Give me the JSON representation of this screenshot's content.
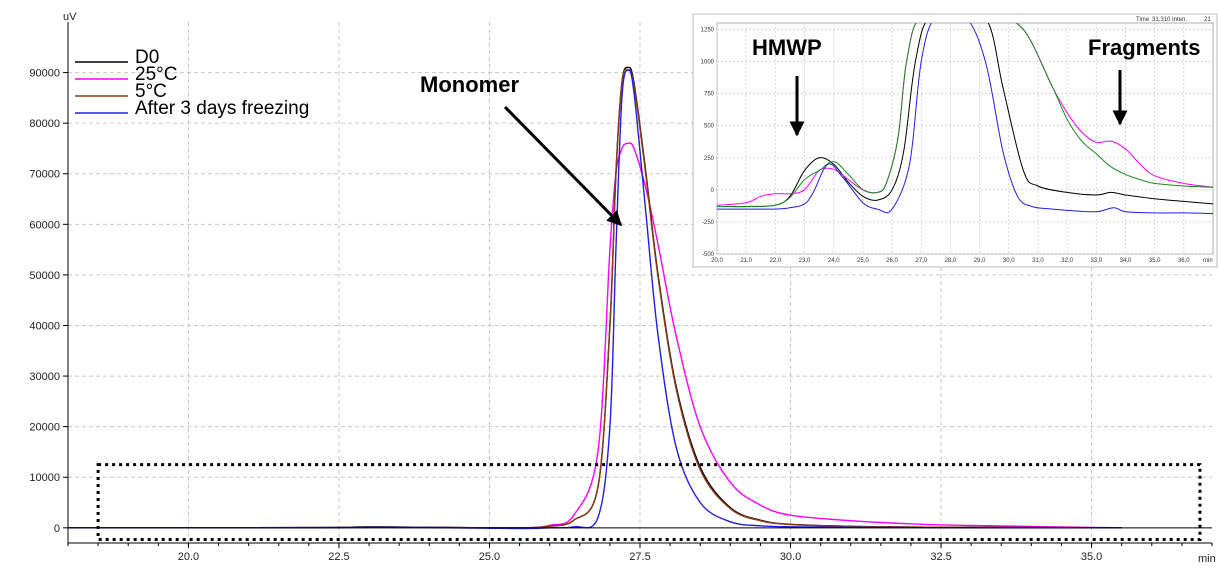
{
  "chart_data": [
    {
      "type": "line",
      "title": "",
      "xlabel": "min",
      "ylabel": "uV",
      "xlim": [
        18.0,
        37.0
      ],
      "ylim": [
        -3000,
        100000
      ],
      "x_ticks": [
        20.0,
        22.5,
        25.0,
        27.5,
        30.0,
        32.5,
        35.0
      ],
      "x_tick_labels": [
        "20.0",
        "22.5",
        "25.0",
        "27.5",
        "30.0",
        "32.5",
        "35.0"
      ],
      "y_ticks": [
        0,
        10000,
        20000,
        30000,
        40000,
        50000,
        60000,
        70000,
        80000,
        90000
      ],
      "y_tick_labels": [
        "0",
        "10000",
        "20000",
        "30000",
        "40000",
        "50000",
        "60000",
        "70000",
        "80000",
        "90000"
      ],
      "grid": true,
      "legend_position": "top-left",
      "series": [
        {
          "name": "D0",
          "color": "#000000",
          "x": [
            18.0,
            22.0,
            23.0,
            24.0,
            25.5,
            26.0,
            26.4,
            26.8,
            27.0,
            27.1,
            27.2,
            27.3,
            27.4,
            27.6,
            27.8,
            28.1,
            28.5,
            29.0,
            29.5,
            30.0,
            31.0,
            32.0,
            33.0,
            35.5
          ],
          "y": [
            0,
            50,
            200,
            100,
            0,
            300,
            1500,
            8000,
            40000,
            70000,
            88000,
            91000,
            88000,
            70000,
            50000,
            28000,
            12000,
            4000,
            1500,
            700,
            300,
            150,
            100,
            0
          ]
        },
        {
          "name": "25°C",
          "color": "#ff00ff",
          "x": [
            18.0,
            22.0,
            23.0,
            24.0,
            25.5,
            26.0,
            26.4,
            26.8,
            27.0,
            27.1,
            27.2,
            27.3,
            27.4,
            27.6,
            27.8,
            28.1,
            28.5,
            29.0,
            29.5,
            30.0,
            31.0,
            32.0,
            33.0,
            35.5
          ],
          "y": [
            0,
            50,
            150,
            100,
            0,
            500,
            2500,
            15000,
            55000,
            70000,
            75000,
            76000,
            75000,
            67000,
            56000,
            38000,
            20000,
            9000,
            4500,
            2500,
            1400,
            800,
            450,
            0
          ]
        },
        {
          "name": "5°C",
          "color": "#8b3a14",
          "x": [
            18.0,
            22.0,
            23.0,
            24.0,
            25.5,
            26.0,
            26.4,
            26.8,
            27.0,
            27.1,
            27.2,
            27.3,
            27.4,
            27.6,
            27.8,
            28.1,
            28.5,
            29.0,
            29.5,
            30.0,
            31.0,
            32.0,
            33.0,
            35.5
          ],
          "y": [
            0,
            50,
            200,
            100,
            0,
            300,
            1500,
            8000,
            40000,
            70000,
            88000,
            90500,
            87500,
            69500,
            49500,
            27500,
            11500,
            3800,
            1400,
            650,
            280,
            140,
            90,
            0
          ]
        },
        {
          "name": "After 3 days freezing",
          "color": "#1f1fe6",
          "x": [
            18.0,
            22.0,
            23.0,
            24.0,
            25.5,
            26.0,
            26.4,
            26.8,
            27.0,
            27.1,
            27.2,
            27.3,
            27.4,
            27.6,
            27.8,
            28.1,
            28.5,
            29.0,
            29.5,
            30.0,
            31.0,
            32.0,
            33.0,
            35.5
          ],
          "y": [
            0,
            0,
            100,
            50,
            -150,
            0,
            200,
            2000,
            20000,
            55000,
            85000,
            90500,
            86000,
            62000,
            38000,
            16000,
            5000,
            1200,
            400,
            200,
            100,
            50,
            0,
            0
          ]
        }
      ],
      "annotations": [
        {
          "text": "Monomer",
          "points_to": {
            "x": 27.0,
            "y": 60000
          }
        }
      ],
      "highlight_box": {
        "xlim": [
          18.5,
          36.8
        ],
        "ylim": [
          -2300,
          12500
        ],
        "style": "dotted"
      }
    },
    {
      "type": "line",
      "title": "",
      "xlabel": "min",
      "ylabel": "",
      "xlim": [
        20.0,
        37.0
      ],
      "ylim": [
        -500,
        1300
      ],
      "x_ticks": [
        20.0,
        21.0,
        22.0,
        23.0,
        24.0,
        25.0,
        26.0,
        27.0,
        28.0,
        29.0,
        30.0,
        31.0,
        32.0,
        33.0,
        34.0,
        35.0,
        36.0
      ],
      "x_tick_labels": [
        "20,0",
        "21,0",
        "22,0",
        "23,0",
        "24,0",
        "25,0",
        "26,0",
        "27,0",
        "28,0",
        "29,0",
        "30,0",
        "31,0",
        "32,0",
        "33,0",
        "34,0",
        "35,0",
        "36,0"
      ],
      "y_ticks": [
        -500,
        -250,
        0,
        250,
        500,
        750,
        1000,
        1250
      ],
      "y_tick_labels": [
        "-500",
        "-250",
        "0",
        "250",
        "500",
        "750",
        "1000",
        "1250"
      ],
      "grid": true,
      "top_text": [
        "Time",
        "31,310",
        "Inten.",
        "21"
      ],
      "series": [
        {
          "color": "#000000",
          "x": [
            20.0,
            21.0,
            22.0,
            22.5,
            23.0,
            23.5,
            24.0,
            24.5,
            25.0,
            25.5,
            26.0,
            26.4,
            26.8,
            27.3,
            28.5,
            29.3,
            29.8,
            30.5,
            31.0,
            32.0,
            33.0,
            33.5,
            34.0,
            35.0,
            36.0,
            37.0
          ],
          "y": [
            -130,
            -130,
            -120,
            -50,
            150,
            250,
            200,
            60,
            -50,
            -80,
            0,
            300,
            1000,
            1350,
            1350,
            1300,
            800,
            150,
            30,
            -20,
            -40,
            -20,
            -40,
            -70,
            -90,
            -110
          ]
        },
        {
          "color": "#ff00ff",
          "x": [
            20.0,
            21.0,
            21.5,
            22.0,
            22.5,
            23.0,
            23.5,
            24.0,
            24.5,
            25.0,
            25.5,
            25.8,
            26.2,
            26.5,
            27.0,
            28.5,
            29.5,
            30.5,
            31.5,
            32.0,
            32.5,
            33.0,
            33.5,
            34.0,
            34.5,
            35.0,
            36.0,
            37.0
          ],
          "y": [
            -120,
            -100,
            -50,
            -30,
            -30,
            0,
            150,
            160,
            80,
            0,
            -20,
            50,
            400,
            1000,
            1350,
            1350,
            1350,
            1250,
            800,
            600,
            450,
            370,
            380,
            320,
            200,
            110,
            50,
            20
          ]
        },
        {
          "color": "#1a8a1a",
          "x": [
            20.0,
            21.0,
            22.0,
            22.5,
            23.0,
            23.5,
            24.0,
            24.5,
            25.0,
            25.5,
            25.8,
            26.2,
            26.5,
            27.0,
            28.5,
            29.5,
            30.5,
            31.5,
            32.0,
            32.5,
            33.0,
            33.5,
            34.0,
            34.5,
            35.0,
            36.0,
            37.0
          ],
          "y": [
            -130,
            -130,
            -120,
            -60,
            80,
            150,
            220,
            120,
            0,
            -20,
            50,
            400,
            1000,
            1350,
            1350,
            1350,
            1250,
            800,
            550,
            380,
            280,
            180,
            120,
            80,
            50,
            30,
            20
          ]
        },
        {
          "color": "#1f1fe6",
          "x": [
            20.0,
            21.0,
            22.0,
            22.5,
            23.0,
            23.3,
            23.8,
            24.3,
            25.0,
            25.5,
            26.0,
            26.6,
            27.0,
            27.5,
            28.5,
            29.2,
            29.8,
            30.3,
            30.8,
            31.5,
            32.0,
            33.0,
            33.6,
            34.0,
            35.0,
            36.0,
            37.0
          ],
          "y": [
            -150,
            -150,
            -150,
            -140,
            -110,
            -20,
            200,
            100,
            -100,
            -150,
            -150,
            200,
            1000,
            1350,
            1350,
            1000,
            300,
            -50,
            -130,
            -150,
            -160,
            -170,
            -140,
            -170,
            -180,
            -180,
            -185
          ]
        }
      ],
      "annotations": [
        {
          "text": "HMWP",
          "points_to": {
            "x": 23.1,
            "y": 170
          }
        },
        {
          "text": "Fragments",
          "points_to": {
            "x": 34.0,
            "y": 340
          }
        }
      ]
    }
  ]
}
